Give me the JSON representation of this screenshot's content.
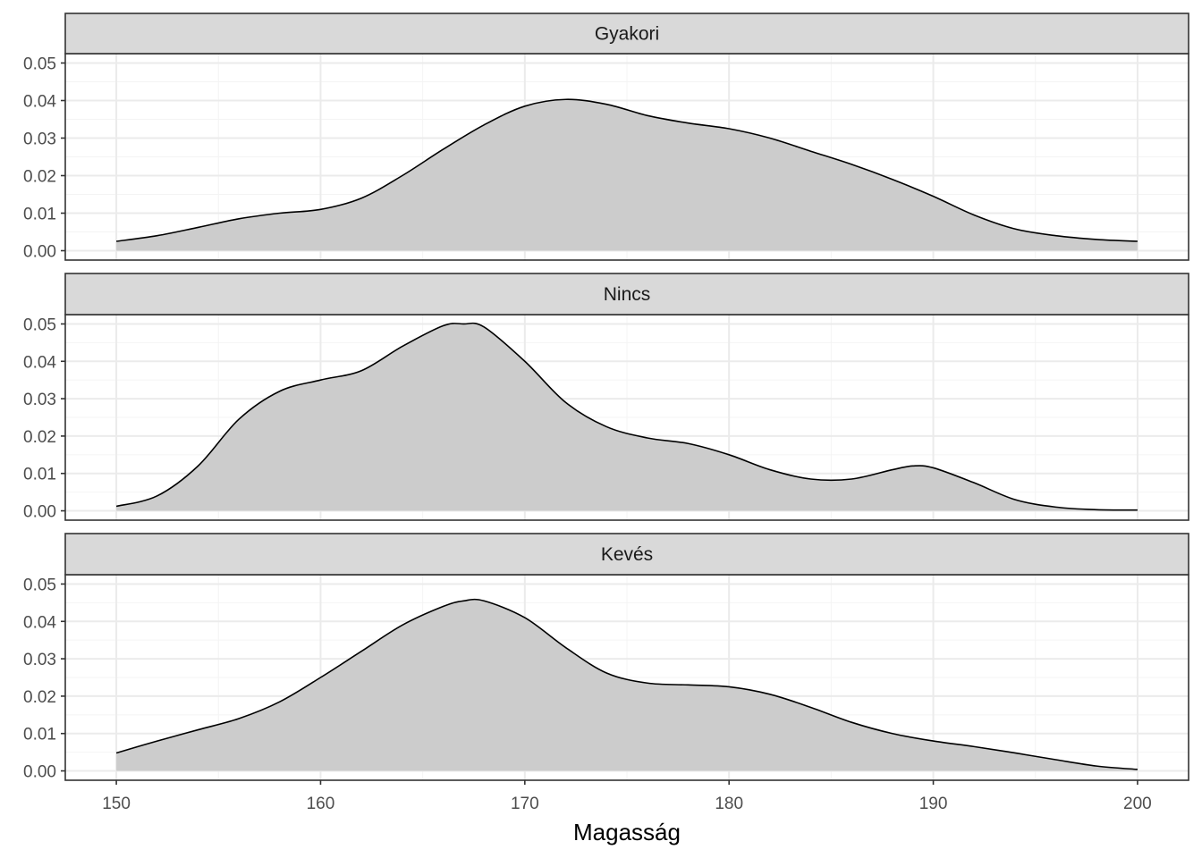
{
  "chart_data": {
    "type": "area",
    "xlabel": "Magasság",
    "ylabel": "",
    "xlim": [
      147.5,
      202.5
    ],
    "ylim": [
      -0.0025,
      0.0525
    ],
    "x_ticks": [
      150,
      160,
      170,
      180,
      190,
      200
    ],
    "x_tick_labels": [
      "150",
      "160",
      "170",
      "180",
      "190",
      "200"
    ],
    "y_ticks": [
      0.0,
      0.01,
      0.02,
      0.03,
      0.04,
      0.05
    ],
    "y_tick_labels": [
      "0.00",
      "0.01",
      "0.02",
      "0.03",
      "0.04",
      "0.05"
    ],
    "grid": true,
    "fill_color": "#cccccc",
    "line_color": "#000000",
    "strip_color": "#d9d9d9",
    "grid_color": "#ebebeb",
    "panels": [
      {
        "label": "Gyakori",
        "x": [
          150,
          152,
          154,
          156,
          158,
          160,
          162,
          164,
          166,
          168,
          170,
          172,
          174,
          176,
          178,
          180,
          182,
          184,
          186,
          188,
          190,
          192,
          194,
          196,
          198,
          200
        ],
        "y": [
          0.0025,
          0.004,
          0.0062,
          0.0085,
          0.01,
          0.011,
          0.014,
          0.02,
          0.027,
          0.0335,
          0.0385,
          0.0403,
          0.039,
          0.036,
          0.034,
          0.0325,
          0.03,
          0.0265,
          0.023,
          0.019,
          0.0145,
          0.0095,
          0.0058,
          0.004,
          0.003,
          0.0025
        ]
      },
      {
        "label": "Nincs",
        "x": [
          150,
          152,
          154,
          156,
          158,
          160,
          162,
          164,
          166,
          167,
          168,
          170,
          172,
          174,
          176,
          178,
          180,
          182,
          184,
          186,
          188,
          189,
          190,
          192,
          194,
          196,
          198,
          200
        ],
        "y": [
          0.0012,
          0.004,
          0.012,
          0.0245,
          0.032,
          0.035,
          0.0375,
          0.044,
          0.0495,
          0.05,
          0.0492,
          0.04,
          0.029,
          0.0225,
          0.0195,
          0.018,
          0.015,
          0.011,
          0.0085,
          0.0085,
          0.011,
          0.012,
          0.0115,
          0.0075,
          0.003,
          0.001,
          0.0003,
          0.0002
        ]
      },
      {
        "label": "Kevés",
        "x": [
          150,
          152,
          154,
          156,
          158,
          160,
          162,
          164,
          166,
          167,
          168,
          170,
          172,
          174,
          176,
          178,
          180,
          182,
          184,
          186,
          188,
          190,
          192,
          194,
          196,
          198,
          200
        ],
        "y": [
          0.0048,
          0.008,
          0.011,
          0.014,
          0.0185,
          0.025,
          0.032,
          0.039,
          0.044,
          0.0455,
          0.0455,
          0.041,
          0.033,
          0.0262,
          0.0235,
          0.023,
          0.0225,
          0.0205,
          0.017,
          0.013,
          0.01,
          0.008,
          0.0065,
          0.0048,
          0.003,
          0.0013,
          0.0004
        ]
      }
    ]
  }
}
